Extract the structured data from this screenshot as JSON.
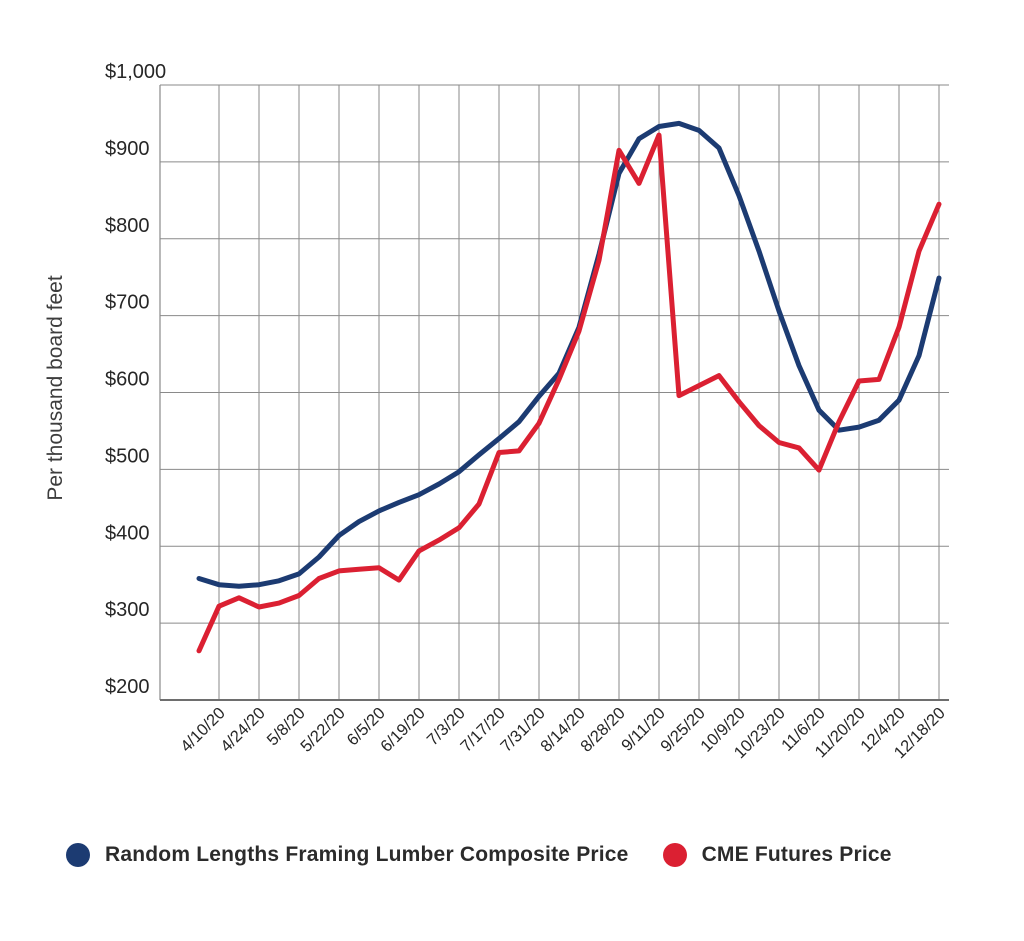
{
  "chart_data": {
    "type": "line",
    "title": "",
    "ylabel": "Per thousand board feet",
    "xlabel": "",
    "ylim": [
      200,
      1000
    ],
    "y_tick_values": [
      200,
      300,
      400,
      500,
      600,
      700,
      800,
      900,
      1000
    ],
    "y_tick_labels": [
      "$200",
      "$300",
      "$400",
      "$500",
      "$600",
      "$700",
      "$800",
      "$900",
      "$1,000"
    ],
    "x": [
      "4/3/20",
      "4/10/20",
      "4/17/20",
      "4/24/20",
      "5/1/20",
      "5/8/20",
      "5/15/20",
      "5/22/20",
      "5/29/20",
      "6/5/20",
      "6/12/20",
      "6/19/20",
      "6/26/20",
      "7/3/20",
      "7/10/20",
      "7/17/20",
      "7/24/20",
      "7/31/20",
      "8/7/20",
      "8/14/20",
      "8/21/20",
      "8/28/20",
      "9/4/20",
      "9/11/20",
      "9/18/20",
      "9/25/20",
      "10/2/20",
      "10/9/20",
      "10/16/20",
      "10/23/20",
      "10/30/20",
      "11/6/20",
      "11/13/20",
      "11/20/20",
      "11/27/20",
      "12/4/20",
      "12/11/20",
      "12/18/20"
    ],
    "x_tick_labels": [
      "4/10/20",
      "4/24/20",
      "5/8/20",
      "5/22/20",
      "6/5/20",
      "6/19/20",
      "7/3/20",
      "7/17/20",
      "7/31/20",
      "8/14/20",
      "8/28/20",
      "9/11/20",
      "9/25/20",
      "10/9/20",
      "10/23/20",
      "11/6/20",
      "11/20/20",
      "12/4/20",
      "12/18/20"
    ],
    "grid": true,
    "legend_position": "bottom",
    "series": [
      {
        "name": "Random Lengths Framing Lumber Composite Price",
        "color": "#1c3b72",
        "values": [
          358,
          350,
          348,
          350,
          355,
          364,
          386,
          414,
          432,
          446,
          457,
          467,
          481,
          497,
          519,
          540,
          562,
          595,
          625,
          685,
          780,
          885,
          930,
          946,
          950,
          941,
          918,
          856,
          784,
          706,
          635,
          577,
          551,
          555,
          564,
          590,
          648,
          749
        ]
      },
      {
        "name": "CME Futures Price",
        "color": "#db2032",
        "values": [
          264,
          322,
          333,
          321,
          326,
          336,
          358,
          368,
          370,
          372,
          356,
          394,
          408,
          424,
          455,
          522,
          524,
          560,
          617,
          680,
          772,
          915,
          872,
          935,
          596,
          609,
          622,
          588,
          557,
          535,
          528,
          499,
          562,
          615,
          617,
          685,
          784,
          845
        ]
      }
    ]
  },
  "axes": {
    "grid_color": "#8a8a8a",
    "axis_color": "#6e6e6e",
    "tick_label_color": "#262626",
    "ylabel_color": "#3d3d3d"
  }
}
